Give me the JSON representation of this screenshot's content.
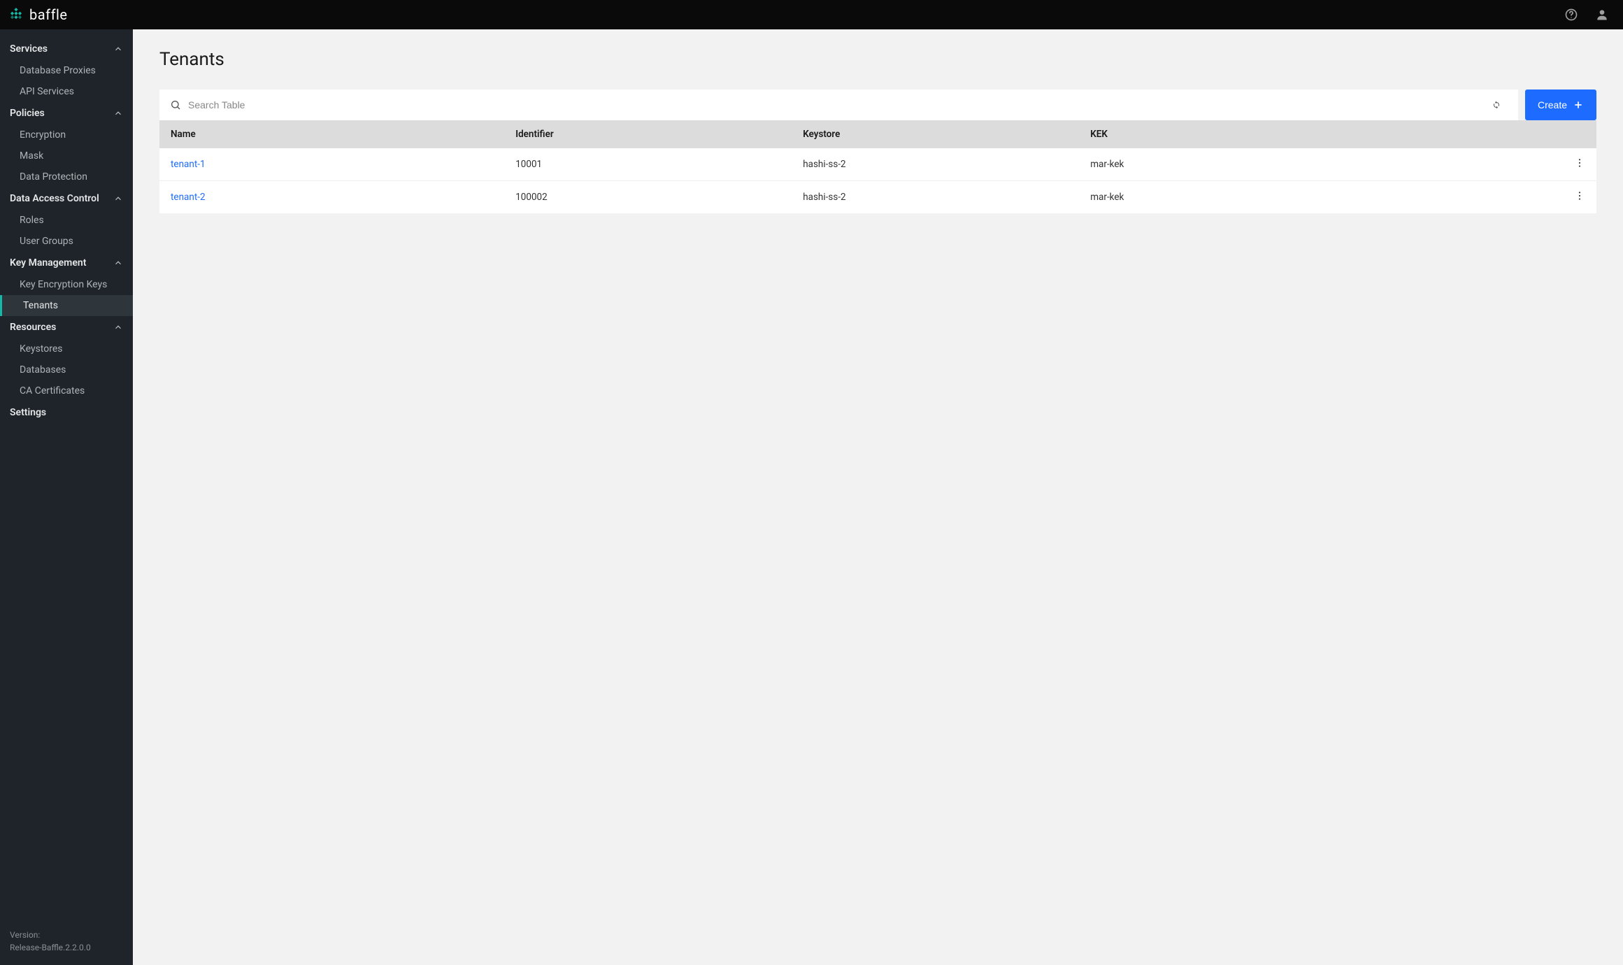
{
  "brand": {
    "name": "baffle"
  },
  "sidebar": {
    "sections": [
      {
        "label": "Services",
        "items": [
          "Database Proxies",
          "API Services"
        ]
      },
      {
        "label": "Policies",
        "items": [
          "Encryption",
          "Mask",
          "Data Protection"
        ]
      },
      {
        "label": "Data Access Control",
        "items": [
          "Roles",
          "User Groups"
        ]
      },
      {
        "label": "Key Management",
        "items": [
          "Key Encryption Keys",
          "Tenants"
        ]
      },
      {
        "label": "Resources",
        "items": [
          "Keystores",
          "Databases",
          "CA Certificates"
        ]
      },
      {
        "label": "Settings",
        "items": []
      }
    ],
    "active_section": 3,
    "active_item": 1,
    "version_label": "Version:",
    "version_value": "Release-Baffle.2.2.0.0"
  },
  "page": {
    "title": "Tenants",
    "search_placeholder": "Search Table",
    "create_label": "Create"
  },
  "table": {
    "columns": [
      "Name",
      "Identifier",
      "Keystore",
      "KEK"
    ],
    "rows": [
      {
        "name": "tenant-1",
        "identifier": "10001",
        "keystore": "hashi-ss-2",
        "kek": "mar-kek"
      },
      {
        "name": "tenant-2",
        "identifier": "100002",
        "keystore": "hashi-ss-2",
        "kek": "mar-kek"
      }
    ]
  },
  "colors": {
    "topbar_bg": "#0a0a0a",
    "sidebar_bg": "#1e2429",
    "accent": "#14b8a6",
    "primary_button": "#1e6cff",
    "link": "#1e6cff",
    "page_bg": "#f2f2f2",
    "table_header_bg": "#dcdcdc"
  }
}
